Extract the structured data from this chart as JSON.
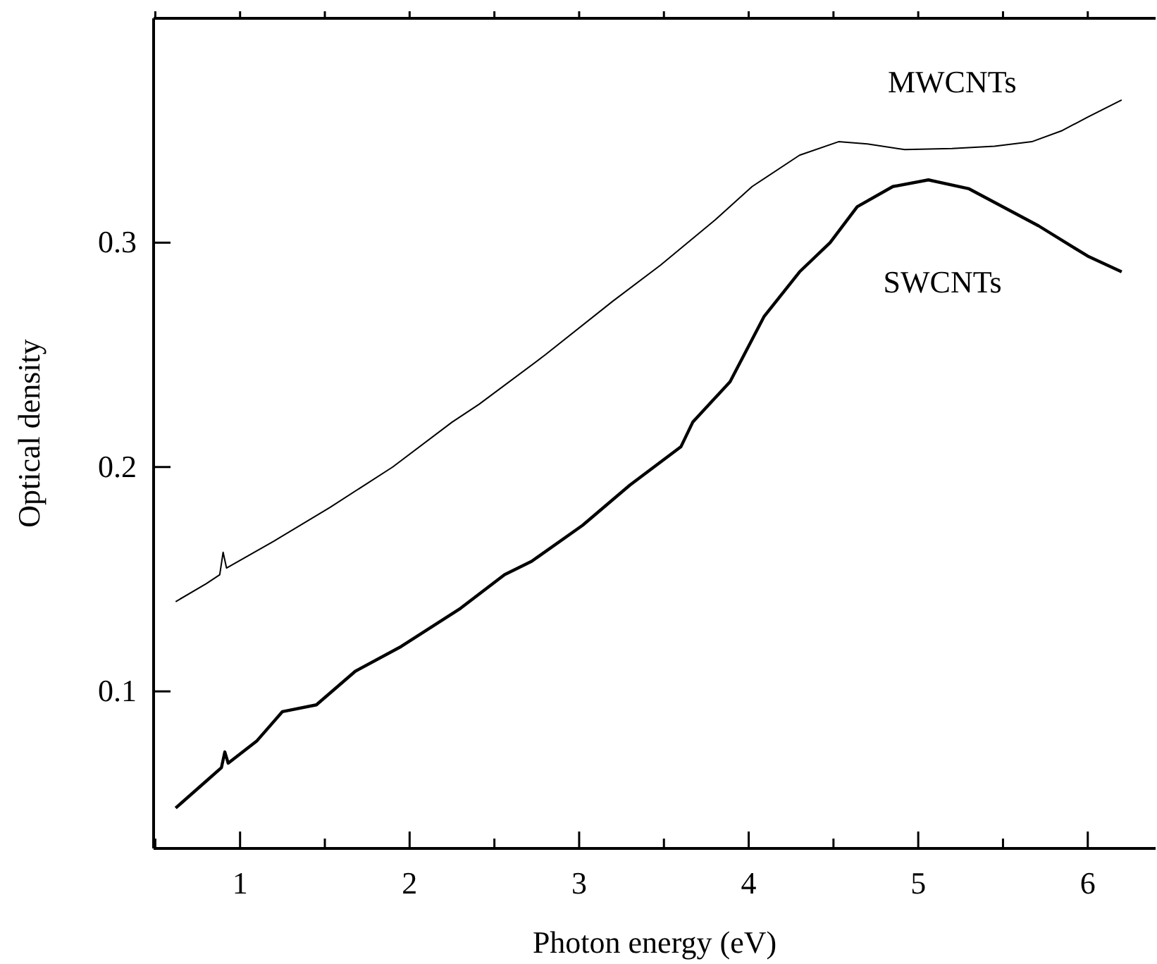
{
  "chart_data": {
    "type": "line",
    "xlabel": "Photon energy (eV)",
    "ylabel": "Optical density",
    "xlim": [
      0.49,
      6.4
    ],
    "ylim": [
      0.03,
      0.4
    ],
    "xticks": [
      {
        "value": 0.5,
        "label": null
      },
      1,
      {
        "value": 1.5,
        "label": null
      },
      2,
      {
        "value": 2.5,
        "label": null
      },
      3,
      {
        "value": 3.5,
        "label": null
      },
      4,
      {
        "value": 4.5,
        "label": null
      },
      5,
      {
        "value": 5.5,
        "label": null
      },
      6
    ],
    "yticks": [
      0.1,
      0.2,
      0.3
    ],
    "grid": false,
    "marker": "none",
    "line_style": "solid",
    "series": [
      {
        "name": "MWCNTs",
        "color": "#000000",
        "x": [
          0.62,
          0.8,
          0.88,
          0.9,
          0.92,
          1.2,
          1.53,
          1.9,
          2.25,
          2.41,
          2.8,
          3.2,
          3.48,
          3.8,
          4.02,
          4.3,
          4.53,
          4.7,
          4.92,
          5.2,
          5.45,
          5.67,
          5.85,
          6.0,
          6.2
        ],
        "values": [
          0.14,
          0.148,
          0.152,
          0.162,
          0.155,
          0.167,
          0.182,
          0.2,
          0.22,
          0.228,
          0.25,
          0.274,
          0.29,
          0.31,
          0.325,
          0.339,
          0.345,
          0.344,
          0.3415,
          0.342,
          0.343,
          0.345,
          0.35,
          0.356,
          0.3636
        ]
      },
      {
        "name": "SWCNTs",
        "color": "#000000",
        "x": [
          0.62,
          0.8,
          0.89,
          0.91,
          0.93,
          1.1,
          1.25,
          1.45,
          1.68,
          1.95,
          2.3,
          2.56,
          2.72,
          3.02,
          3.3,
          3.6,
          3.67,
          3.89,
          4.09,
          4.3,
          4.48,
          4.64,
          4.85,
          5.06,
          5.3,
          5.71,
          6.0,
          6.2
        ],
        "values": [
          0.048,
          0.06,
          0.066,
          0.073,
          0.068,
          0.078,
          0.091,
          0.094,
          0.109,
          0.12,
          0.137,
          0.152,
          0.158,
          0.174,
          0.192,
          0.209,
          0.22,
          0.238,
          0.267,
          0.287,
          0.3,
          0.316,
          0.325,
          0.328,
          0.324,
          0.3075,
          0.294,
          0.287
        ]
      }
    ]
  }
}
